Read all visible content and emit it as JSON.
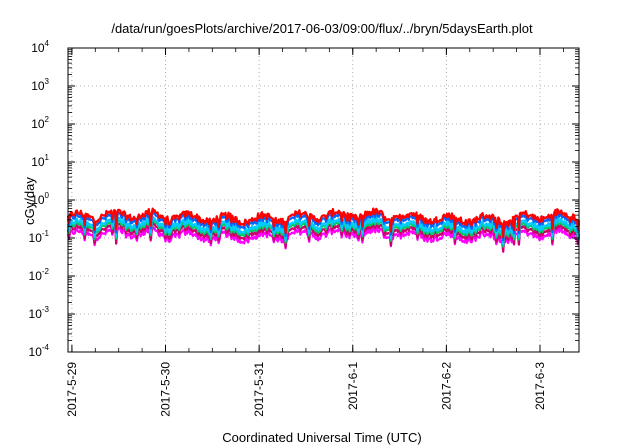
{
  "chart_data": {
    "type": "line",
    "title": "/data/run/goesPlots/archive/2017-06-03/09:00/flux/../bryn/5daysEarth.plot",
    "xlabel": "Coordinated Universal Time (UTC)",
    "ylabel": "cGy/day",
    "yscale": "log",
    "ylim": [
      0.0001,
      10000
    ],
    "xlim": [
      "2017-05-28T23:00",
      "2017-06-03T10:00"
    ],
    "grid": true,
    "y_ticks": [
      {
        "base": "10",
        "exp": "4",
        "value": 10000
      },
      {
        "base": "10",
        "exp": "3",
        "value": 1000
      },
      {
        "base": "10",
        "exp": "2",
        "value": 100
      },
      {
        "base": "10",
        "exp": "1",
        "value": 10
      },
      {
        "base": "10",
        "exp": "0",
        "value": 1
      },
      {
        "base": "10",
        "exp": "-1",
        "value": 0.1
      },
      {
        "base": "10",
        "exp": "-2",
        "value": 0.01
      },
      {
        "base": "10",
        "exp": "-3",
        "value": 0.001
      },
      {
        "base": "10",
        "exp": "-4",
        "value": 0.0001
      }
    ],
    "x_ticks": [
      {
        "label": "2017-5-29",
        "value": "2017-05-29T00:00"
      },
      {
        "label": "2017-5-30",
        "value": "2017-05-30T00:00"
      },
      {
        "label": "2017-5-31",
        "value": "2017-05-31T00:00"
      },
      {
        "label": "2017-6-1",
        "value": "2017-06-01T00:00"
      },
      {
        "label": "2017-6-2",
        "value": "2017-06-02T00:00"
      },
      {
        "label": "2017-6-3",
        "value": "2017-06-03T00:00"
      }
    ],
    "series": [
      {
        "color": "#ff0000",
        "baseline": 0.36,
        "dip": 0.6
      },
      {
        "color": "#0066ff",
        "baseline": 0.3,
        "dip": 0.6
      },
      {
        "color": "#00ccff",
        "baseline": 0.22,
        "dip": 0.55
      },
      {
        "color": "#00cc66",
        "baseline": 0.19,
        "dip": 0.55
      },
      {
        "color": "#cc0066",
        "baseline": 0.155,
        "dip": 0.6
      },
      {
        "color": "#ff00ff",
        "baseline": 0.12,
        "dip": 0.45
      }
    ]
  }
}
